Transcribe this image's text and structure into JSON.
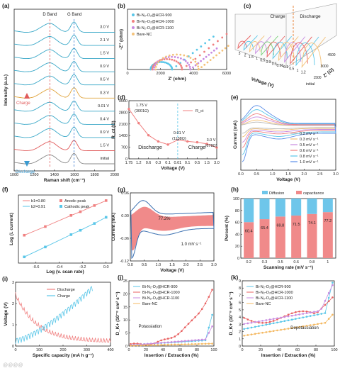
{
  "chart_data": [
    {
      "id": "a",
      "panel_label": "(a)",
      "type": "line",
      "xlabel": "Raman shift (cm⁻¹)",
      "ylabel": "Intensity (a.u.)",
      "xlim": [
        1000,
        2000
      ],
      "xticks": [
        "1000",
        "1200",
        "1400",
        "1600",
        "1800",
        "2000"
      ],
      "annotations": {
        "d_band": "D Band",
        "g_band": "G Band",
        "charge": "Charge",
        "discharge": "Discharge"
      },
      "series": [
        {
          "label": "initial",
          "color": "#888888"
        },
        {
          "label": "1.5 V",
          "color": "#e05a5a"
        },
        {
          "label": "0.9 V",
          "color": "#3aa8c8"
        },
        {
          "label": "0.4 V",
          "color": "#3aa8c8"
        },
        {
          "label": "0.01 V",
          "color": "#3aa8c8"
        },
        {
          "label": "0.3 V",
          "color": "#e0a33a"
        },
        {
          "label": "0.5 V",
          "color": "#3aa8c8"
        },
        {
          "label": "0.9 V",
          "color": "#3aa8c8"
        },
        {
          "label": "1.5 V",
          "color": "#3aa8c8"
        },
        {
          "label": "2.1 V",
          "color": "#3aa8c8"
        },
        {
          "label": "3.0 V",
          "color": "#3aa8c8"
        }
      ]
    },
    {
      "id": "b",
      "panel_label": "(b)",
      "type": "scatter",
      "xlabel": "Z' (ohm)",
      "ylabel": "-Z'' (ohm)",
      "xlim": [
        0,
        6000
      ],
      "xticks": [
        "0",
        "2000",
        "4000",
        "6000"
      ],
      "series": [
        {
          "name": "Bi-N₂-O₂@HCR-900",
          "color": "#59c6e8"
        },
        {
          "name": "Bi-N₂-O₂@HCR-1000",
          "color": "#f08080"
        },
        {
          "name": "Bi-N₂-O₂@HCR-1100",
          "color": "#c88ae0"
        },
        {
          "name": "Bare-NC",
          "color": "#f4c27a"
        }
      ]
    },
    {
      "id": "c",
      "panel_label": "(c)",
      "type": "scatter",
      "xlabel": "Voltage (V)",
      "ylabel": "Z' (Ω)",
      "annotations": {
        "charge": "Charge",
        "discharge": "Discharge"
      },
      "voltage_labels": [
        "3",
        "2",
        "1.5",
        "1",
        "0.5",
        "0.3",
        "0.1",
        "0.01",
        "0.1",
        "0.5",
        "1",
        "1.2"
      ],
      "z_ticks": [
        "1500",
        "3000",
        "4500"
      ],
      "extra_label": "initial"
    },
    {
      "id": "d",
      "panel_label": "(d)",
      "type": "line",
      "xlabel": "Voltage (V)",
      "ylabel": "R_ct (Ω)",
      "categories": [
        "1.75",
        "1.2",
        "0.6",
        "0.3",
        "0.1",
        "0.01",
        "0.1",
        "0.5",
        "1.5",
        "3.0"
      ],
      "values": [
        3001,
        2150,
        1420,
        1050,
        860,
        1138,
        1050,
        1000,
        900,
        678
      ],
      "ylim": [
        0,
        3500
      ],
      "yticks": [
        "0",
        "700",
        "1400",
        "2100",
        "2800",
        "3500"
      ],
      "xticks": [
        "1.75",
        "1.2",
        "0.6",
        "0.3",
        "0.1",
        "0.01",
        "0.1",
        "0.5",
        "1.5",
        "3.0"
      ],
      "legend": "R_ct",
      "annotations": [
        "1.75 V",
        "(3001Ω)",
        "0.01 V",
        "(1138Ω)",
        "3.0 V",
        "(678Ω)",
        "Discharge",
        "Charge"
      ]
    },
    {
      "id": "e",
      "panel_label": "(e)",
      "type": "line",
      "xlabel": "Voltage (V)",
      "ylabel": "Current (mA)",
      "xlim": [
        0,
        3
      ],
      "xticks": [
        "0.0",
        "0.5",
        "1.0",
        "1.5",
        "2.0",
        "2.5",
        "3.0"
      ],
      "series": [
        {
          "name": "0.2 mV s⁻¹",
          "color": "#b8b8b8",
          "scale": 0.2
        },
        {
          "name": "0.3 mV s⁻¹",
          "color": "#f4c27a",
          "scale": 0.3
        },
        {
          "name": "0.5 mV s⁻¹",
          "color": "#c88ae0",
          "scale": 0.45
        },
        {
          "name": "0.6 mV s⁻¹",
          "color": "#f08080",
          "scale": 0.6
        },
        {
          "name": "0.8 mV s⁻¹",
          "color": "#59c6e8",
          "scale": 0.8
        },
        {
          "name": "1.0 mV s⁻¹",
          "color": "#5a8ee8",
          "scale": 1.0
        }
      ]
    },
    {
      "id": "f",
      "panel_label": "(f)",
      "type": "scatter",
      "xlabel": "Log (v. scan rate)",
      "ylabel": "Log (i. current)",
      "xlim": [
        -0.7,
        0.0
      ],
      "xticks": [
        "-0.6",
        "-0.4",
        "-0.2",
        "0.0"
      ],
      "series": [
        {
          "name": "Anodic peak",
          "fit_label": "b1=0.80",
          "color": "#f08080",
          "x": [
            -0.7,
            -0.52,
            -0.3,
            -0.22,
            -0.1,
            0.0
          ],
          "y": [
            0.55,
            0.69,
            0.87,
            0.93,
            1.03,
            1.11
          ]
        },
        {
          "name": "Cathodic peak",
          "fit_label": "b2=0.91",
          "color": "#59c6e8",
          "x": [
            -0.7,
            -0.52,
            -0.3,
            -0.22,
            -0.1,
            0.0
          ],
          "y": [
            0.2,
            0.36,
            0.56,
            0.63,
            0.74,
            0.84
          ]
        }
      ]
    },
    {
      "id": "g",
      "panel_label": "(g)",
      "type": "area",
      "xlabel": "Voltage (V)",
      "ylabel": "Current (mA)",
      "xlim": [
        0,
        3
      ],
      "xticks": [
        "0.0",
        "0.5",
        "1.0",
        "1.5",
        "2.0",
        "2.5",
        "3.0"
      ],
      "ylim": [
        -0.12,
        0.09
      ],
      "yticks": [
        "-0.12",
        "-0.06",
        "0.00",
        "0.06"
      ],
      "annotations": [
        "77.2%",
        "1.0 mV s⁻¹"
      ]
    },
    {
      "id": "h",
      "panel_label": "(h)",
      "type": "bar",
      "xlabel": "Scanning rate (mV s⁻¹)",
      "ylabel": "Percent (%)",
      "categories": [
        "0.2",
        "0.3",
        "0.5",
        "0.6",
        "0.8",
        "1"
      ],
      "series": [
        {
          "name": "capacitance",
          "color": "#f08a8a",
          "values": [
            60.4,
            65.4,
            69.8,
            71.5,
            74.1,
            77.2
          ]
        },
        {
          "name": "Diffusion",
          "color": "#6ec6ea",
          "values": [
            39.6,
            34.6,
            30.2,
            28.5,
            25.9,
            22.8
          ]
        }
      ],
      "ylim": [
        0,
        100
      ],
      "yticks": [
        "0",
        "20",
        "40",
        "60",
        "80",
        "100"
      ]
    },
    {
      "id": "i",
      "panel_label": "(i)",
      "type": "line",
      "xlabel": "Specific capacity (mA h g⁻¹)",
      "ylabel": "Voltage (V)",
      "xlim": [
        0,
        400
      ],
      "xticks": [
        "0",
        "100",
        "200",
        "300",
        "400"
      ],
      "ylim": [
        0,
        3
      ],
      "yticks": [
        "0",
        "1",
        "2",
        "3"
      ],
      "series": [
        {
          "name": "Discharge",
          "color": "#f08080"
        },
        {
          "name": "Charge",
          "color": "#59c6e8"
        }
      ]
    },
    {
      "id": "j",
      "panel_label": "(j)",
      "type": "line",
      "xlabel": "Insertion / Extraction (%)",
      "ylabel": "D_K+ (10⁻⁸ cm² s⁻¹)",
      "xlim": [
        0,
        100
      ],
      "xticks": [
        "0",
        "20",
        "40",
        "60",
        "80",
        "100"
      ],
      "ylim": [
        0,
        25
      ],
      "yticks": [
        "0",
        "5",
        "10",
        "15",
        "20",
        "25"
      ],
      "annotation": "Potassiation",
      "series": [
        {
          "name": "Bi-N₂-O₂@HCR-900",
          "color": "#59c6e8"
        },
        {
          "name": "Bi-N₂-O₂@HCR-1000",
          "color": "#e86060"
        },
        {
          "name": "Bi-N₂-O₂@HCR-1100",
          "color": "#c88ae0"
        },
        {
          "name": "Bare-NC",
          "color": "#f4b860"
        }
      ]
    },
    {
      "id": "k",
      "panel_label": "(k)",
      "type": "line",
      "xlabel": "Insertion / Extraction (%)",
      "ylabel": "D_K+ (10⁻⁸ cm² s⁻¹)",
      "xlim": [
        0,
        100
      ],
      "xticks": [
        "0",
        "20",
        "40",
        "60",
        "80",
        "100"
      ],
      "ylim": [
        0,
        9
      ],
      "yticks": [
        "0",
        "1",
        "2",
        "3",
        "4",
        "5",
        "6",
        "7",
        "8",
        "9"
      ],
      "annotation": "Depotassiation",
      "series": [
        {
          "name": "Bi-N₂-O₂@HCR-900",
          "color": "#59c6e8"
        },
        {
          "name": "Bi-N₂-O₂@HCR-1000",
          "color": "#e86060"
        },
        {
          "name": "Bi-N₂-O₂@HCR-1100",
          "color": "#c88ae0"
        },
        {
          "name": "Bare-NC",
          "color": "#f4b860"
        }
      ]
    }
  ],
  "watermark": "@@@@"
}
